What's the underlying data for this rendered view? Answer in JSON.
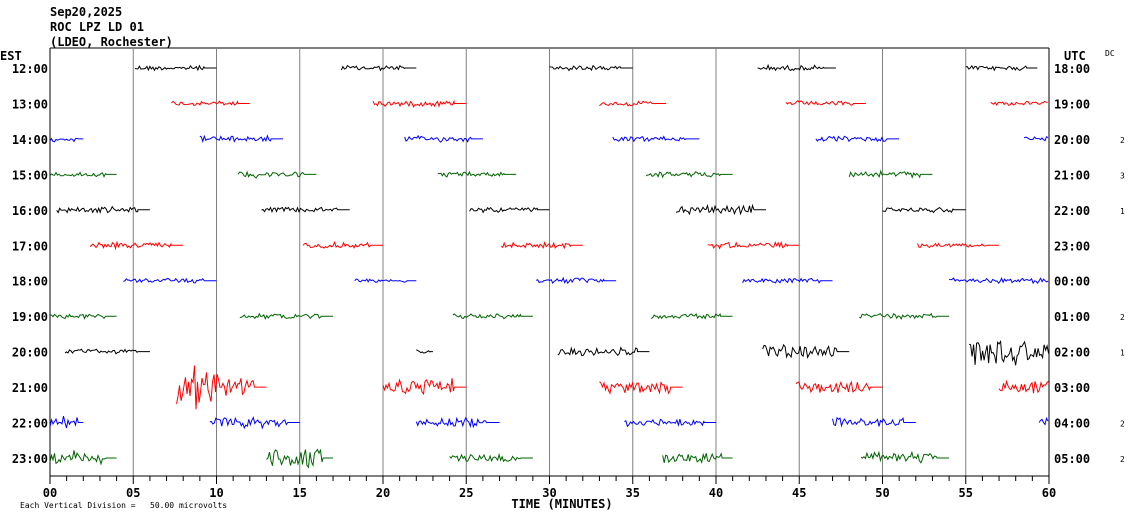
{
  "header": {
    "date": "Sep20,2025",
    "station": "ROC LPZ LD 01",
    "network": "(LDEO, Rochester)"
  },
  "left_axis_title": "EST",
  "right_axis_title": "UTC",
  "dc_title": "DC",
  "footer": "Each Vertical Division =   50.00 microvolts",
  "colors": {
    "cycle": [
      "#000000",
      "#ff0000",
      "#0000ff",
      "#006400"
    ],
    "grid": "#808080"
  },
  "chart_data": {
    "type": "line",
    "subtype": "helicorder",
    "xlabel": "TIME (MINUTES)",
    "xlim": [
      0,
      60
    ],
    "xticks": [
      "00",
      "05",
      "10",
      "15",
      "20",
      "25",
      "30",
      "35",
      "40",
      "45",
      "50",
      "55",
      "60"
    ],
    "minor_tick_step_minutes": 1,
    "grid": "vertical every 5 minutes",
    "rows": [
      {
        "est": "12:00",
        "utc": "18:00",
        "dc": "",
        "segments": [
          [
            5.1,
            10.0,
            3
          ],
          [
            17.5,
            22.0,
            3
          ],
          [
            30.0,
            35.0,
            3
          ],
          [
            42.5,
            47.2,
            3
          ],
          [
            55.0,
            59.3,
            3
          ]
        ]
      },
      {
        "est": "13:00",
        "utc": "19:00",
        "dc": "",
        "segments": [
          [
            7.3,
            12.0,
            3
          ],
          [
            19.4,
            25.0,
            3.5
          ],
          [
            33.0,
            37.0,
            3
          ],
          [
            44.2,
            49.0,
            3
          ],
          [
            56.5,
            60,
            2.5
          ]
        ]
      },
      {
        "est": "14:00",
        "utc": "20:00",
        "dc": "2",
        "segments": [
          [
            0,
            2.0,
            3
          ],
          [
            9.0,
            14.0,
            3.5
          ],
          [
            21.3,
            26.0,
            3.5
          ],
          [
            33.8,
            39.0,
            3
          ],
          [
            46.0,
            51.0,
            3
          ],
          [
            58.5,
            60,
            3
          ]
        ]
      },
      {
        "est": "15:00",
        "utc": "21:00",
        "dc": "3",
        "segments": [
          [
            0,
            4.0,
            3
          ],
          [
            11.3,
            16.0,
            4
          ],
          [
            23.3,
            28.0,
            3
          ],
          [
            35.8,
            41.0,
            3
          ],
          [
            48.0,
            53.0,
            3.5
          ]
        ]
      },
      {
        "est": "16:00",
        "utc": "22:00",
        "dc": "1",
        "segments": [
          [
            0.4,
            6.0,
            3.5
          ],
          [
            12.7,
            18.0,
            3
          ],
          [
            25.2,
            30.0,
            3
          ],
          [
            37.6,
            43.0,
            5
          ],
          [
            50.0,
            55.0,
            3
          ]
        ]
      },
      {
        "est": "17:00",
        "utc": "23:00",
        "dc": "",
        "segments": [
          [
            2.4,
            8.0,
            3.5
          ],
          [
            15.2,
            20.0,
            3.5
          ],
          [
            27.1,
            32.0,
            3
          ],
          [
            39.5,
            45.0,
            3.5
          ],
          [
            52.1,
            57.0,
            2.5
          ]
        ]
      },
      {
        "est": "18:00",
        "utc": "00:00",
        "dc": "",
        "segments": [
          [
            4.4,
            10.0,
            3
          ],
          [
            18.3,
            22.0,
            2.5
          ],
          [
            29.2,
            34.0,
            3
          ],
          [
            41.6,
            47.0,
            3
          ],
          [
            54.0,
            60,
            3
          ]
        ]
      },
      {
        "est": "19:00",
        "utc": "01:00",
        "dc": "2",
        "segments": [
          [
            0,
            4.0,
            3
          ],
          [
            11.4,
            17.0,
            3
          ],
          [
            24.2,
            29.0,
            3
          ],
          [
            36.1,
            41.0,
            3
          ],
          [
            48.6,
            54.0,
            3
          ]
        ]
      },
      {
        "est": "20:00",
        "utc": "02:00",
        "dc": "1",
        "segments": [
          [
            0.9,
            6.0,
            3
          ],
          [
            22.0,
            23.0,
            2
          ],
          [
            30.5,
            36.0,
            5
          ],
          [
            42.8,
            48.0,
            8
          ],
          [
            55.2,
            60,
            24
          ]
        ]
      },
      {
        "est": "21:00",
        "utc": "03:00",
        "dc": "",
        "segments": [
          [
            7.6,
            13.0,
            30
          ],
          [
            20.0,
            25.0,
            10
          ],
          [
            33.0,
            38.0,
            8
          ],
          [
            44.8,
            50.0,
            8
          ],
          [
            57.0,
            60,
            7
          ]
        ]
      },
      {
        "est": "22:00",
        "utc": "04:00",
        "dc": "2",
        "segments": [
          [
            0,
            2.0,
            8
          ],
          [
            9.6,
            15.0,
            6
          ],
          [
            22.0,
            27.0,
            5
          ],
          [
            34.5,
            40.0,
            5
          ],
          [
            47.0,
            52.0,
            5
          ],
          [
            59.4,
            60,
            5
          ]
        ]
      },
      {
        "est": "23:00",
        "utc": "05:00",
        "dc": "2",
        "segments": [
          [
            0,
            4.0,
            8
          ],
          [
            13.0,
            17.0,
            11
          ],
          [
            24.0,
            29.0,
            6
          ],
          [
            36.8,
            41.0,
            6
          ],
          [
            48.7,
            54.0,
            6
          ]
        ]
      }
    ]
  }
}
